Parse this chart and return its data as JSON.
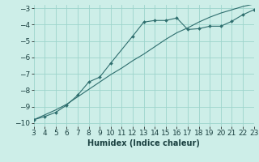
{
  "curve1_x": [
    3,
    4,
    5,
    6,
    7,
    8,
    9,
    10,
    12,
    13,
    14,
    15,
    16,
    17,
    18,
    19,
    20,
    21,
    22,
    23
  ],
  "curve1_y": [
    -9.8,
    -9.6,
    -9.35,
    -8.9,
    -8.3,
    -7.5,
    -7.2,
    -6.35,
    -4.7,
    -3.85,
    -3.75,
    -3.75,
    -3.6,
    -4.3,
    -4.25,
    -4.1,
    -4.1,
    -3.8,
    -3.4,
    -3.1
  ],
  "curve2_x": [
    3,
    4,
    5,
    6,
    7,
    8,
    9,
    10,
    11,
    12,
    13,
    14,
    15,
    16,
    17,
    18,
    19,
    20,
    21,
    22,
    23
  ],
  "curve2_y": [
    -9.8,
    -9.5,
    -9.2,
    -8.85,
    -8.4,
    -7.95,
    -7.5,
    -7.05,
    -6.65,
    -6.2,
    -5.8,
    -5.35,
    -4.9,
    -4.5,
    -4.2,
    -3.85,
    -3.55,
    -3.3,
    -3.1,
    -2.9,
    -2.75
  ],
  "color": "#2e6e6e",
  "bg_color": "#cdeee8",
  "grid_color": "#9dd4cc",
  "xlabel": "Humidex (Indice chaleur)",
  "xlim": [
    3,
    23
  ],
  "ylim": [
    -10.2,
    -2.8
  ],
  "xticks": [
    3,
    4,
    5,
    6,
    7,
    8,
    9,
    10,
    11,
    12,
    13,
    14,
    15,
    16,
    17,
    18,
    19,
    20,
    21,
    22,
    23
  ],
  "yticks": [
    -10,
    -9,
    -8,
    -7,
    -6,
    -5,
    -4,
    -3
  ],
  "xlabel_fontsize": 7,
  "tick_fontsize": 6.5
}
